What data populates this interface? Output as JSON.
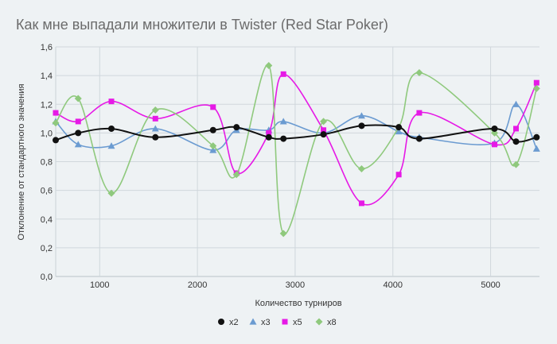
{
  "chart_data": {
    "type": "line",
    "title": "Как мне выпадали множители в Twister (Red Star Poker)",
    "xlabel": "Количество турниров",
    "ylabel": "Отклонение от стандартного значения",
    "xlim": [
      550,
      5500
    ],
    "ylim": [
      0,
      1.6
    ],
    "x_ticks": [
      1000,
      2000,
      3000,
      4000,
      5000
    ],
    "y_ticks": [
      0,
      0.2,
      0.4,
      0.6,
      0.8,
      1.0,
      1.2,
      1.4,
      1.6
    ],
    "y_tick_labels": [
      "0,0",
      "0,2",
      "0,4",
      "0,6",
      "0,8",
      "1,0",
      "1,2",
      "1,4",
      "1,6"
    ],
    "grid": true,
    "legend": "bottom-center",
    "series": [
      {
        "name": "x2",
        "color": "#111111",
        "marker": "circle",
        "points": [
          [
            550,
            0.95
          ],
          [
            780,
            1.0
          ],
          [
            1120,
            1.03
          ],
          [
            1570,
            0.97
          ],
          [
            2160,
            1.02
          ],
          [
            2400,
            1.04
          ],
          [
            2730,
            0.97
          ],
          [
            2880,
            0.96
          ],
          [
            3290,
            0.99
          ],
          [
            3680,
            1.05
          ],
          [
            4060,
            1.04
          ],
          [
            4270,
            0.96
          ],
          [
            5040,
            1.03
          ],
          [
            5260,
            0.94
          ],
          [
            5470,
            0.97
          ]
        ]
      },
      {
        "name": "x3",
        "color": "#6b9bd1",
        "marker": "triangle",
        "points": [
          [
            550,
            1.08
          ],
          [
            780,
            0.92
          ],
          [
            1120,
            0.91
          ],
          [
            1570,
            1.03
          ],
          [
            2160,
            0.88
          ],
          [
            2400,
            1.02
          ],
          [
            2730,
            1.02
          ],
          [
            2880,
            1.08
          ],
          [
            3290,
            1.0
          ],
          [
            3680,
            1.12
          ],
          [
            4060,
            1.01
          ],
          [
            4270,
            0.97
          ],
          [
            5040,
            0.93
          ],
          [
            5260,
            1.2
          ],
          [
            5470,
            0.89
          ]
        ]
      },
      {
        "name": "x5",
        "color": "#e619e6",
        "marker": "square",
        "points": [
          [
            550,
            1.14
          ],
          [
            780,
            1.08
          ],
          [
            1120,
            1.22
          ],
          [
            1570,
            1.1
          ],
          [
            2160,
            1.18
          ],
          [
            2400,
            0.72
          ],
          [
            2730,
            1.0
          ],
          [
            2880,
            1.41
          ],
          [
            3290,
            1.02
          ],
          [
            3680,
            0.51
          ],
          [
            4060,
            0.71
          ],
          [
            4270,
            1.14
          ],
          [
            5040,
            0.92
          ],
          [
            5260,
            1.03
          ],
          [
            5470,
            1.35
          ]
        ]
      },
      {
        "name": "x8",
        "color": "#8fc97d",
        "marker": "diamond",
        "points": [
          [
            550,
            1.07
          ],
          [
            780,
            1.24
          ],
          [
            1120,
            0.58
          ],
          [
            1570,
            1.16
          ],
          [
            2160,
            0.91
          ],
          [
            2400,
            0.71
          ],
          [
            2730,
            1.47
          ],
          [
            2880,
            0.3
          ],
          [
            3290,
            1.08
          ],
          [
            3680,
            0.75
          ],
          [
            4060,
            1.04
          ],
          [
            4270,
            1.42
          ],
          [
            5040,
            1.0
          ],
          [
            5260,
            0.78
          ],
          [
            5470,
            1.31
          ]
        ]
      }
    ]
  }
}
